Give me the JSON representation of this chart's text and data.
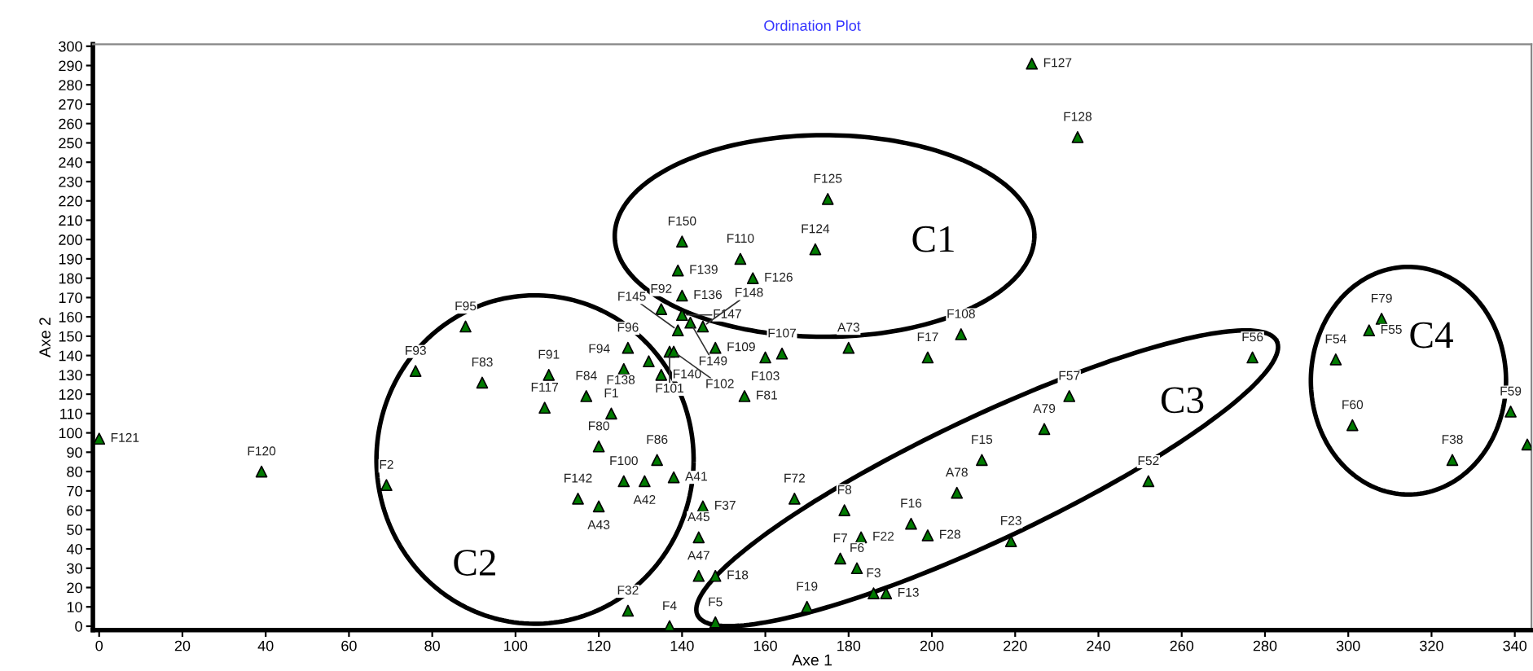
{
  "chart_data": {
    "type": "scatter",
    "title": "Ordination Plot",
    "xlabel": "Axe 1",
    "ylabel": "Axe 2",
    "x": [
      0,
      39,
      69,
      76,
      88,
      92,
      108,
      107,
      117,
      123,
      120,
      126,
      127,
      132,
      135,
      134,
      138,
      126,
      131,
      115,
      120,
      145,
      144,
      144,
      148,
      148,
      137,
      127,
      140,
      139,
      140,
      135,
      140,
      142,
      145,
      139,
      148,
      137,
      138,
      154,
      157,
      172,
      175,
      164,
      160,
      180,
      199,
      207,
      155,
      224,
      235,
      233,
      227,
      212,
      206,
      195,
      199,
      219,
      167,
      179,
      183,
      182,
      178,
      186,
      189,
      170,
      252,
      277,
      297,
      305,
      308,
      301,
      325,
      339,
      343
    ],
    "values": [
      97,
      80,
      73,
      132,
      155,
      126,
      130,
      113,
      119,
      110,
      93,
      133,
      144,
      137,
      130,
      86,
      77,
      75,
      75,
      66,
      62,
      62,
      46,
      26,
      26,
      2,
      0,
      8,
      199,
      184,
      171,
      164,
      161,
      157,
      155,
      153,
      144,
      142,
      142,
      190,
      180,
      195,
      221,
      141,
      139,
      144,
      139,
      151,
      119,
      291,
      253,
      119,
      102,
      86,
      69,
      53,
      47,
      44,
      66,
      60,
      46,
      30,
      35,
      17,
      17,
      10,
      75,
      139,
      138,
      153,
      159,
      104,
      86,
      111,
      94
    ],
    "color": "#007a00",
    "marker": "triangle",
    "grid": false,
    "legend": false,
    "xlim": [
      -1.5,
      344
    ],
    "ylim": [
      -2,
      301
    ],
    "xticks": [
      0,
      20,
      40,
      60,
      80,
      100,
      120,
      140,
      160,
      180,
      200,
      220,
      240,
      260,
      280,
      300,
      320,
      340
    ],
    "yticks": [
      0,
      10,
      20,
      30,
      40,
      50,
      60,
      70,
      80,
      90,
      100,
      110,
      120,
      130,
      140,
      150,
      160,
      170,
      180,
      190,
      200,
      210,
      220,
      230,
      240,
      250,
      260,
      270,
      280,
      290,
      300
    ],
    "annotations": [
      {
        "text": "F121",
        "x": 0,
        "y": 97
      },
      {
        "text": "F120",
        "x": 39,
        "y": 80
      },
      {
        "text": "F2",
        "x": 69,
        "y": 73
      },
      {
        "text": "F93",
        "x": 76,
        "y": 132
      },
      {
        "text": "F95",
        "x": 88,
        "y": 155
      },
      {
        "text": "F83",
        "x": 92,
        "y": 126
      },
      {
        "text": "F91",
        "x": 108,
        "y": 130
      },
      {
        "text": "F117",
        "x": 107,
        "y": 113
      },
      {
        "text": "F84",
        "x": 117,
        "y": 119
      },
      {
        "text": "F1",
        "x": 123,
        "y": 110
      },
      {
        "text": "F80",
        "x": 120,
        "y": 93
      },
      {
        "text": "F94",
        "x": 126,
        "y": 133
      },
      {
        "text": "F96",
        "x": 127,
        "y": 144
      },
      {
        "text": "F138",
        "x": 132,
        "y": 137
      },
      {
        "text": "F140",
        "x": 135,
        "y": 130
      },
      {
        "text": "F86",
        "x": 134,
        "y": 86
      },
      {
        "text": "A41",
        "x": 138,
        "y": 77
      },
      {
        "text": "F100",
        "x": 126,
        "y": 75
      },
      {
        "text": "A42",
        "x": 131,
        "y": 75
      },
      {
        "text": "F142",
        "x": 115,
        "y": 66
      },
      {
        "text": "A43",
        "x": 120,
        "y": 62
      },
      {
        "text": "F37",
        "x": 145,
        "y": 62
      },
      {
        "text": "A45",
        "x": 144,
        "y": 46
      },
      {
        "text": "A47",
        "x": 144,
        "y": 26
      },
      {
        "text": "F18",
        "x": 148,
        "y": 26
      },
      {
        "text": "F5",
        "x": 148,
        "y": 2
      },
      {
        "text": "F4",
        "x": 137,
        "y": 0
      },
      {
        "text": "F32",
        "x": 127,
        "y": 8
      },
      {
        "text": "F150",
        "x": 140,
        "y": 199
      },
      {
        "text": "F139",
        "x": 139,
        "y": 184
      },
      {
        "text": "F136",
        "x": 140,
        "y": 171
      },
      {
        "text": "F92",
        "x": 135,
        "y": 164
      },
      {
        "text": "F147",
        "x": 140,
        "y": 161
      },
      {
        "text": "F149",
        "x": 142,
        "y": 157
      },
      {
        "text": "F148",
        "x": 145,
        "y": 155
      },
      {
        "text": "F145",
        "x": 139,
        "y": 153
      },
      {
        "text": "F109",
        "x": 148,
        "y": 144
      },
      {
        "text": "F101",
        "x": 137,
        "y": 142
      },
      {
        "text": "F102",
        "x": 138,
        "y": 142
      },
      {
        "text": "F110",
        "x": 154,
        "y": 190
      },
      {
        "text": "F126",
        "x": 157,
        "y": 180
      },
      {
        "text": "F124",
        "x": 172,
        "y": 195
      },
      {
        "text": "F125",
        "x": 175,
        "y": 221
      },
      {
        "text": "F107",
        "x": 164,
        "y": 141
      },
      {
        "text": "F103",
        "x": 160,
        "y": 139
      },
      {
        "text": "A73",
        "x": 180,
        "y": 144
      },
      {
        "text": "F17",
        "x": 199,
        "y": 139
      },
      {
        "text": "F108",
        "x": 207,
        "y": 151
      },
      {
        "text": "F81",
        "x": 155,
        "y": 119
      },
      {
        "text": "F127",
        "x": 224,
        "y": 291
      },
      {
        "text": "F128",
        "x": 235,
        "y": 253
      },
      {
        "text": "F57",
        "x": 233,
        "y": 119
      },
      {
        "text": "A79",
        "x": 227,
        "y": 102
      },
      {
        "text": "F15",
        "x": 212,
        "y": 86
      },
      {
        "text": "A78",
        "x": 206,
        "y": 69
      },
      {
        "text": "F16",
        "x": 195,
        "y": 53
      },
      {
        "text": "F28",
        "x": 199,
        "y": 47
      },
      {
        "text": "F23",
        "x": 219,
        "y": 44
      },
      {
        "text": "F72",
        "x": 167,
        "y": 66
      },
      {
        "text": "F8",
        "x": 179,
        "y": 60
      },
      {
        "text": "F22",
        "x": 183,
        "y": 46
      },
      {
        "text": "F6",
        "x": 182,
        "y": 30
      },
      {
        "text": "F7",
        "x": 178,
        "y": 35
      },
      {
        "text": "F3",
        "x": 186,
        "y": 17
      },
      {
        "text": "F13",
        "x": 189,
        "y": 17
      },
      {
        "text": "F19",
        "x": 170,
        "y": 10
      },
      {
        "text": "F52",
        "x": 252,
        "y": 75
      },
      {
        "text": "F56",
        "x": 277,
        "y": 139
      },
      {
        "text": "F54",
        "x": 297,
        "y": 138
      },
      {
        "text": "F55",
        "x": 305,
        "y": 153
      },
      {
        "text": "F79",
        "x": 308,
        "y": 159
      },
      {
        "text": "F60",
        "x": 301,
        "y": 104
      },
      {
        "text": "F38",
        "x": 325,
        "y": 86
      },
      {
        "text": "F59",
        "x": 339,
        "y": 111
      },
      "C1",
      "C2",
      "C3",
      "C4"
    ]
  }
}
